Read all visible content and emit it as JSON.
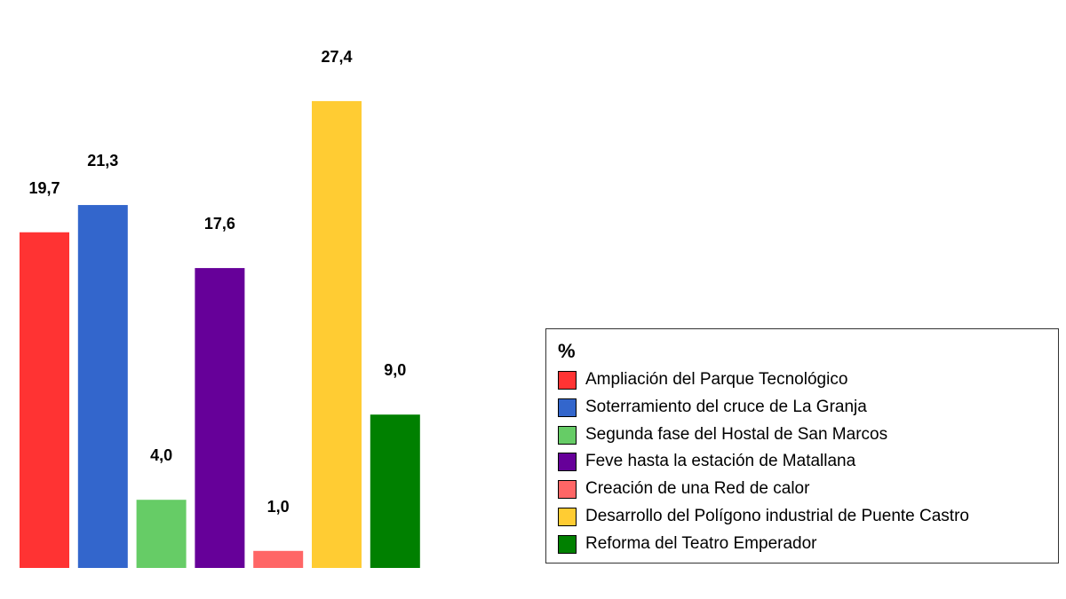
{
  "chart_data": {
    "type": "bar",
    "categories": [
      "Ampliación del Parque Tecnológico",
      "Soterramiento del cruce de La Granja",
      "Segunda fase del Hostal de San Marcos",
      "Feve hasta la estación de Matallana",
      "Creación de una Red de calor",
      "Desarrollo del Polígono industrial de Puente Castro",
      "Reforma del Teatro Emperador"
    ],
    "values": [
      19.7,
      21.3,
      4.0,
      17.6,
      1.0,
      27.4,
      9.0
    ],
    "value_labels": [
      "19,7",
      "21,3",
      "4,0",
      "17,6",
      "1,0",
      "27,4",
      "9,0"
    ],
    "colors": [
      "#ff3333",
      "#3366cc",
      "#66cc66",
      "#660099",
      "#ff6666",
      "#ffcc33",
      "#008000"
    ],
    "ylim": [
      0,
      30
    ],
    "grid": false,
    "legend": {
      "title": "%",
      "placement": "right",
      "items": [
        {
          "label": "Ampliación del Parque Tecnológico",
          "color": "#ff3333"
        },
        {
          "label": "Soterramiento del cruce de La Granja",
          "color": "#3366cc"
        },
        {
          "label": "Segunda fase del Hostal de San Marcos",
          "color": "#66cc66"
        },
        {
          "label": "Feve hasta la estación de Matallana",
          "color": "#660099"
        },
        {
          "label": "Creación de una Red de calor",
          "color": "#ff6666"
        },
        {
          "label": "Desarrollo del Polígono industrial de Puente Castro",
          "color": "#ffcc33"
        },
        {
          "label": "Reforma del Teatro Emperador",
          "color": "#008000"
        }
      ]
    }
  }
}
